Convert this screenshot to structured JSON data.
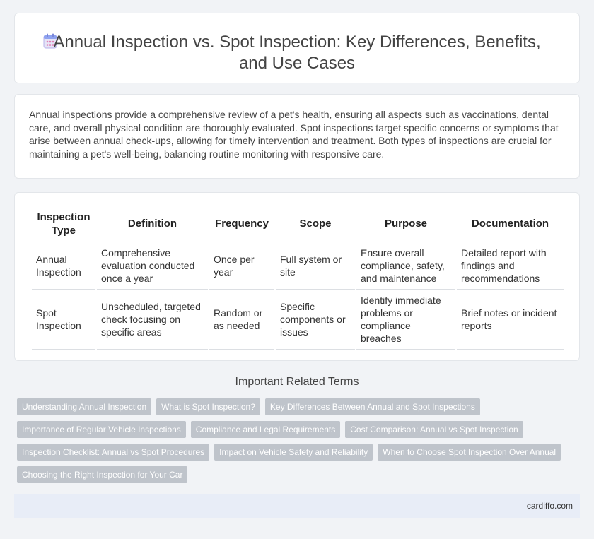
{
  "header": {
    "title": "Annual Inspection vs. Spot Inspection: Key Differences, Benefits, and Use Cases",
    "icon": "calendar-icon"
  },
  "intro": {
    "text": "Annual inspections provide a comprehensive review of a pet's health, ensuring all aspects such as vaccinations, dental care, and overall physical condition are thoroughly evaluated. Spot inspections target specific concerns or symptoms that arise between annual check-ups, allowing for timely intervention and treatment. Both types of inspections are crucial for maintaining a pet's well-being, balancing routine monitoring with responsive care."
  },
  "table": {
    "headers": [
      "Inspection Type",
      "Definition",
      "Frequency",
      "Scope",
      "Purpose",
      "Documentation"
    ],
    "rows": [
      [
        "Annual Inspection",
        "Comprehensive evaluation conducted once a year",
        "Once per year",
        "Full system or site",
        "Ensure overall compliance, safety, and maintenance",
        "Detailed report with findings and recommendations"
      ],
      [
        "Spot Inspection",
        "Unscheduled, targeted check focusing on specific areas",
        "Random or as needed",
        "Specific components or issues",
        "Identify immediate problems or compliance breaches",
        "Brief notes or incident reports"
      ]
    ]
  },
  "related": {
    "title": "Important Related Terms",
    "tags": [
      [
        "Understanding Annual Inspection",
        "What is Spot Inspection?",
        "Key Differences Between Annual and Spot Inspections"
      ],
      [
        "Importance of Regular Vehicle Inspections",
        "Compliance and Legal Requirements",
        "Cost Comparison: Annual vs Spot Inspection"
      ],
      [
        "Inspection Checklist: Annual vs Spot Procedures",
        "Impact on Vehicle Safety and Reliability",
        "When to Choose Spot Inspection Over Annual"
      ],
      [
        "Choosing the Right Inspection for Your Car"
      ]
    ]
  },
  "footer": {
    "site": "cardiffo.com"
  },
  "colors": {
    "tag_bg": "#bfc4cb",
    "footer_bg": "#e8edf7",
    "page_bg": "#f1f3f6"
  }
}
